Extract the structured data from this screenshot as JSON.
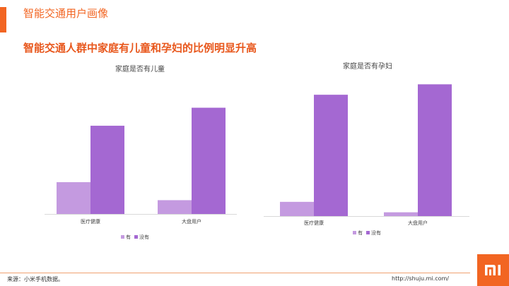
{
  "header": {
    "title": "智能交通用户画像"
  },
  "subtitle": "智能交通人群中家庭有儿童和孕妇的比例明显升高",
  "colors": {
    "accent": "#f26522",
    "series_yes": "#c49ae0",
    "series_no": "#a468d2"
  },
  "footer": {
    "source": "来源：小米手机数据。",
    "url": "http://shuju.mi.com/"
  },
  "logo": {
    "icon": "mi-logo-icon"
  },
  "chart_data": [
    {
      "type": "bar",
      "title": "家庭是否有儿童",
      "categories": [
        "医疗健康",
        "大盘用户"
      ],
      "series": [
        {
          "name": "有",
          "values": [
            26.5,
            11.5
          ]
        },
        {
          "name": "没有",
          "values": [
            73.5,
            88.5
          ]
        }
      ],
      "ylim": [
        0,
        100
      ],
      "grid": false,
      "legend": "bottom"
    },
    {
      "type": "bar",
      "title": "家庭是否有孕妇",
      "categories": [
        "医疗健康",
        "大盘用户"
      ],
      "series": [
        {
          "name": "有",
          "values": [
            10.5,
            2.8
          ]
        },
        {
          "name": "没有",
          "values": [
            89.5,
            97.2
          ]
        }
      ],
      "ylim": [
        0,
        100
      ],
      "grid": false,
      "legend": "bottom"
    }
  ]
}
